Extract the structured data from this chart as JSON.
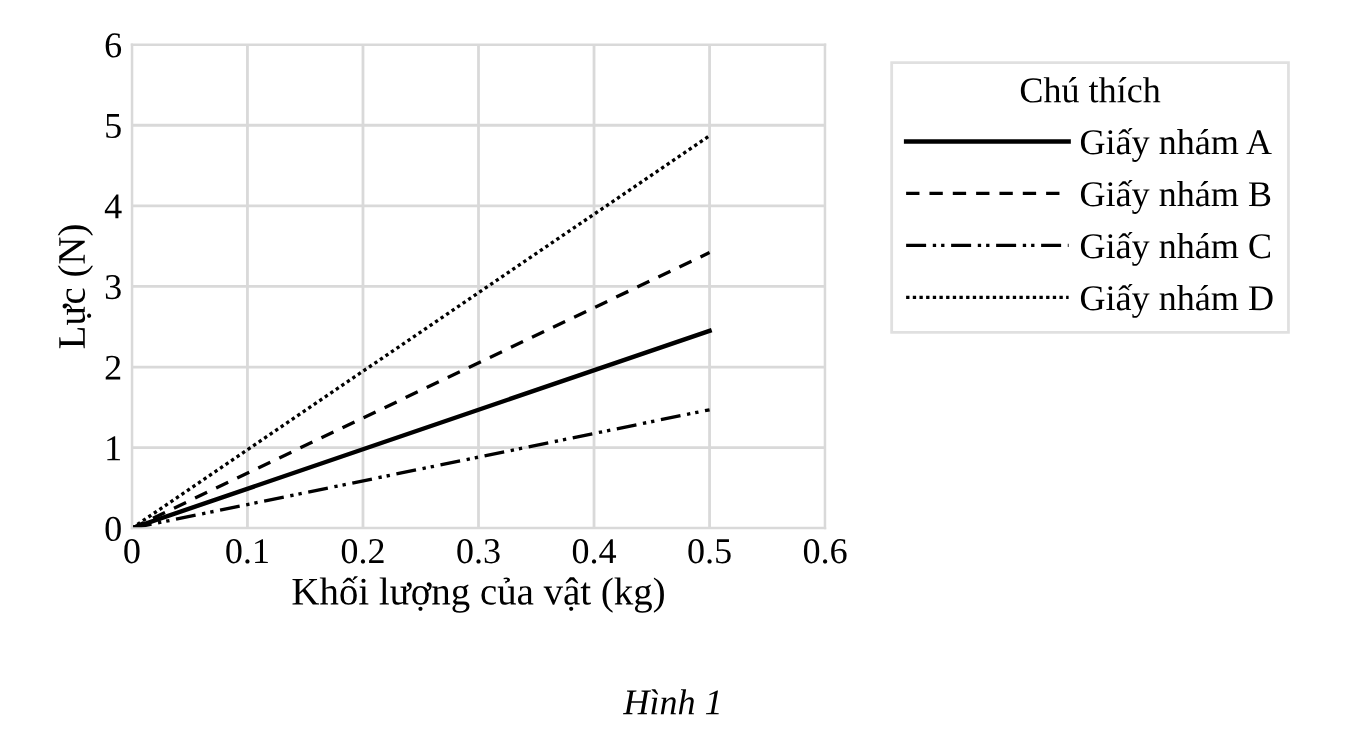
{
  "chart_data": {
    "type": "line",
    "xlabel": "Khối lượng của vật (kg)",
    "ylabel": "Lực (N)",
    "legend_title": "Chú thích",
    "legend": "right",
    "grid": true,
    "marker": "none",
    "x": [
      0,
      0.5
    ],
    "xlim": [
      0,
      0.6
    ],
    "xticks": [
      0,
      0.1,
      0.2,
      0.3,
      0.4,
      0.5,
      0.6
    ],
    "ylim": [
      0,
      6
    ],
    "yticks": [
      0,
      1,
      2,
      3,
      4,
      5,
      6
    ],
    "series": [
      {
        "name": "Giấy nhám A",
        "color": "#000000",
        "line_style": "solid",
        "values": [
          0,
          2.45
        ]
      },
      {
        "name": "Giấy nhám B",
        "color": "#000000",
        "line_style": "dashed",
        "values": [
          0,
          3.42
        ]
      },
      {
        "name": "Giấy nhám C",
        "color": "#000000",
        "line_style": "dashdot",
        "values": [
          0,
          1.47
        ]
      },
      {
        "name": "Giấy nhám D",
        "color": "#000000",
        "line_style": "dotted",
        "values": [
          0,
          4.87
        ]
      }
    ],
    "annotations": [
      "Hình 1"
    ]
  }
}
